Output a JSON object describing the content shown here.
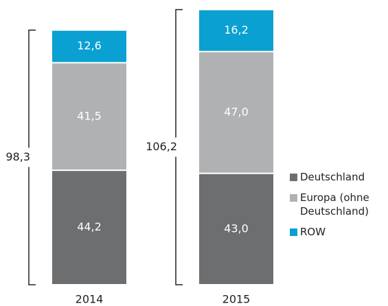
{
  "chart_data": {
    "type": "stacked_bar",
    "categories": [
      "2014",
      "2015"
    ],
    "series": [
      {
        "name": "Deutschland",
        "color": "#6d6e70",
        "values": [
          44.2,
          43.0
        ],
        "value_labels": [
          "44,2",
          "43,0"
        ]
      },
      {
        "name": "Europa (ohne Deutschland)",
        "color": "#b0b1b3",
        "values": [
          41.5,
          47.0
        ],
        "value_labels": [
          "41,5",
          "47,0"
        ]
      },
      {
        "name": "ROW",
        "color": "#0aa0d2",
        "values": [
          12.6,
          16.2
        ],
        "value_labels": [
          "12,6",
          "16,2"
        ]
      }
    ],
    "totals": [
      98.3,
      106.2
    ],
    "total_labels": [
      "98,3",
      "106,2"
    ]
  }
}
